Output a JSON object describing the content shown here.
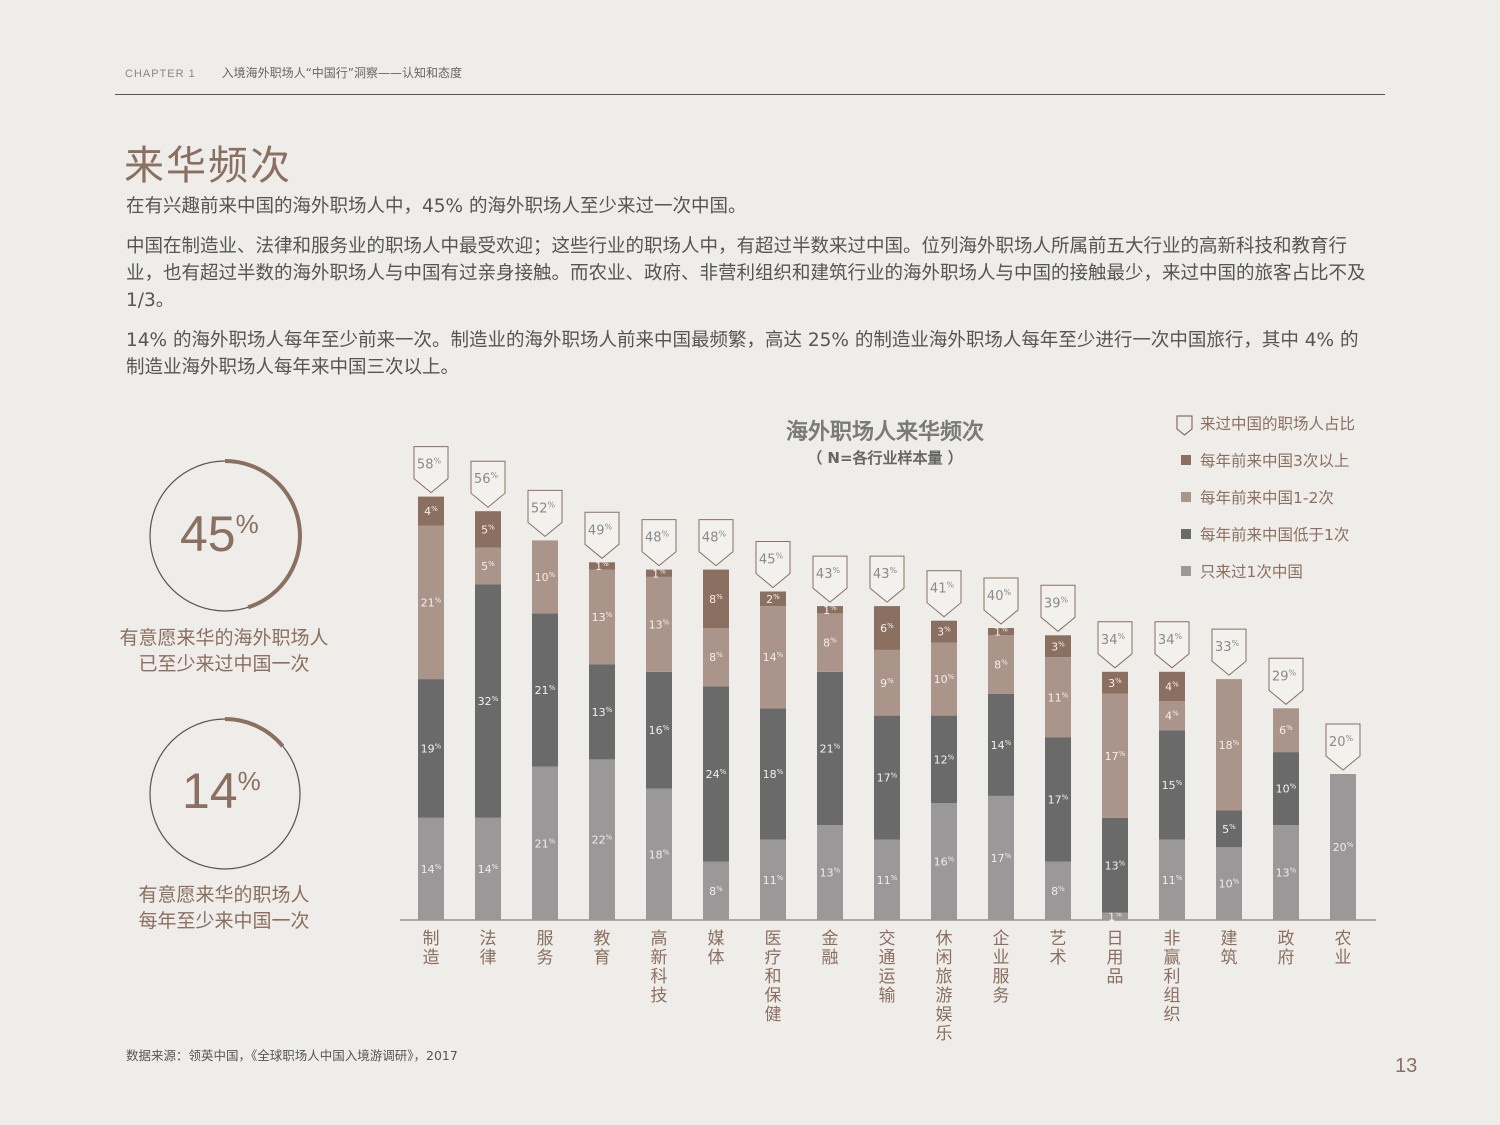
{
  "header": {
    "chapter": "CHAPTER 1",
    "section": "入境海外职场人“中国行”洞察——认知和态度"
  },
  "title": "来华频次",
  "paragraphs": [
    "在有兴趣前来中国的海外职场人中，45% 的海外职场人至少来过一次中国。",
    "中国在制造业、法律和服务业的职场人中最受欢迎；这些行业的职场人中，有超过半数来过中国。位列海外职场人所属前五大行业的高新科技和教育行业，也有超过半数的海外职场人与中国有过亲身接触。而农业、政府、非营利组织和建筑行业的海外职场人与中国的接触最少，来过中国的旅客占比不及 1/3。",
    "14% 的海外职场人每年至少前来一次。制造业的海外职场人前来中国最频繁，高达 25% 的制造业海外职场人每年至少进行一次中国旅行，其中 4% 的制造业海外职场人每年来中国三次以上。"
  ],
  "stats": [
    {
      "value": 45,
      "unit": "%",
      "label_line1": "有意愿来华的海外职场人",
      "label_line2": "已至少来过中国一次"
    },
    {
      "value": 14,
      "unit": "%",
      "label_line1": "有意愿来华的职场人",
      "label_line2": "每年至少来中国一次"
    }
  ],
  "chart_data": {
    "type": "bar",
    "stacked": true,
    "title": "海外职场人来华频次",
    "subtitle": "（ N=各行业样本量 ）",
    "categories": [
      "制造",
      "法律",
      "服务",
      "教育",
      "高新科技",
      "媒体",
      "医疗和保健",
      "金融",
      "交通运输",
      "休闲旅游娱乐",
      "企业服务",
      "艺术",
      "日用品",
      "非赢利组织",
      "建筑",
      "政府",
      "农业"
    ],
    "totals": [
      58,
      56,
      52,
      49,
      48,
      48,
      45,
      43,
      43,
      41,
      40,
      39,
      34,
      34,
      33,
      29,
      20
    ],
    "series": [
      {
        "name": "只来过1次中国",
        "color": "#9a9898",
        "values": [
          14,
          14,
          21,
          22,
          18,
          8,
          11,
          13,
          11,
          16,
          17,
          8,
          1,
          11,
          10,
          13,
          20
        ]
      },
      {
        "name": "每年前来中国低于1次",
        "color": "#6b6a6a",
        "values": [
          19,
          32,
          21,
          13,
          16,
          24,
          18,
          21,
          17,
          12,
          14,
          17,
          13,
          15,
          5,
          10,
          0
        ]
      },
      {
        "name": "每年前来中国1-2次",
        "color": "#ab958a",
        "values": [
          21,
          5,
          10,
          13,
          13,
          8,
          14,
          8,
          9,
          10,
          8,
          11,
          17,
          4,
          18,
          6,
          0
        ]
      },
      {
        "name": "每年前来中国3次以上",
        "color": "#8b6f60",
        "values": [
          4,
          5,
          0,
          1,
          1,
          8,
          2,
          1,
          6,
          3,
          1,
          3,
          3,
          4,
          0,
          0,
          0
        ]
      }
    ],
    "total_legend": "来过中国的职场人占比",
    "percent_sign": "%"
  },
  "legend_order": [
    {
      "name": "来过中国的职场人占比",
      "color": ""
    },
    {
      "name": "每年前来中国3次以上",
      "color": "#8b6f60"
    },
    {
      "name": "每年前来中国1-2次",
      "color": "#ab958a"
    },
    {
      "name": "每年前来中国低于1次",
      "color": "#6b6a6a"
    },
    {
      "name": "只来过1次中国",
      "color": "#9a9898"
    }
  ],
  "source": "数据来源：领英中国，《全球职场人中国入境游调研》，2017",
  "page_number": "13"
}
